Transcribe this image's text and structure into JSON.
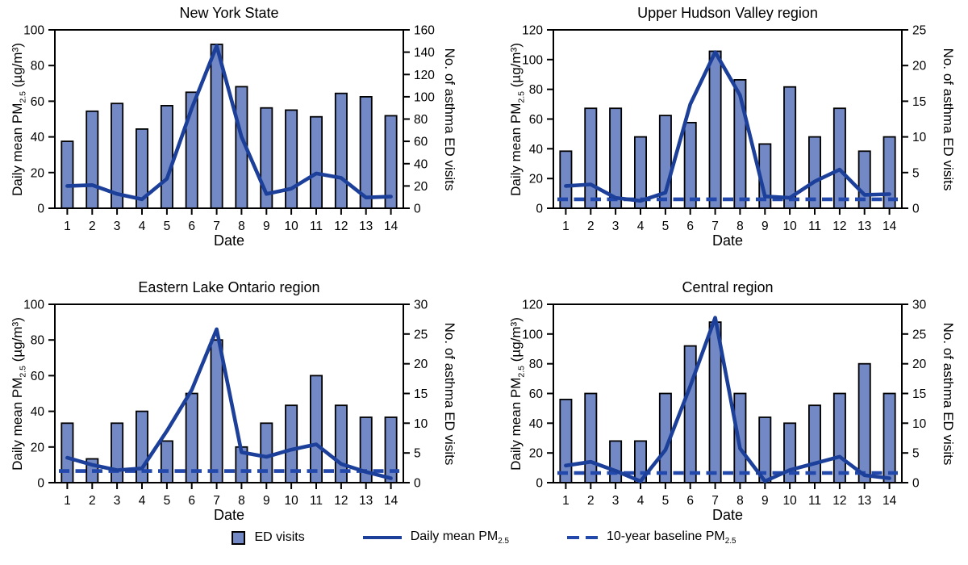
{
  "colors": {
    "bar_fill": "#7289C6",
    "bar_border": "#000000",
    "daily_line": "#1C3F99",
    "baseline_line": "#2348AC",
    "text": "#000000",
    "background": "#FFFFFF"
  },
  "legend": {
    "items": [
      {
        "label": "ED visits",
        "sub": ""
      },
      {
        "label": "Daily mean PM",
        "sub": "2.5"
      },
      {
        "label": "10-year baseline PM",
        "sub": "2.5"
      }
    ]
  },
  "chart_data": [
    {
      "type": "bar",
      "title": "New York State",
      "xlabel": "Date",
      "ylabel_left": {
        "prefix": "Daily mean PM",
        "sub": "2.5",
        "suffix": " (µg/m³)"
      },
      "ylabel_right": "No. of asthma ED visits",
      "categories": [
        1,
        2,
        3,
        4,
        5,
        6,
        7,
        8,
        9,
        10,
        11,
        12,
        13,
        14
      ],
      "left_axis": {
        "range": [
          0,
          100
        ],
        "ticks": [
          0,
          20,
          40,
          60,
          80,
          100
        ]
      },
      "right_axis": {
        "range": [
          0,
          160
        ],
        "ticks": [
          0,
          20,
          40,
          60,
          80,
          100,
          120,
          140,
          160
        ]
      },
      "series": [
        {
          "name": "ED visits",
          "type": "bar",
          "axis": "right",
          "values": [
            60,
            87,
            94,
            71,
            92,
            104,
            147,
            109,
            90,
            88,
            82,
            103,
            100,
            83
          ]
        },
        {
          "name": "Daily mean PM2.5",
          "type": "line",
          "axis": "left",
          "values": [
            12.5,
            13,
            8,
            5,
            16.5,
            56,
            91,
            40,
            8,
            11,
            19.5,
            17,
            6,
            6.5
          ]
        },
        {
          "name": "10-year baseline PM2.5",
          "type": "dashed-line",
          "axis": "left",
          "value": null
        }
      ]
    },
    {
      "type": "bar",
      "title": "Upper Hudson Valley region",
      "xlabel": "Date",
      "ylabel_left": {
        "prefix": "Daily mean PM",
        "sub": "2.5",
        "suffix": " (µg/m³)"
      },
      "ylabel_right": "No. of asthma ED visits",
      "categories": [
        1,
        2,
        3,
        4,
        5,
        6,
        7,
        8,
        9,
        10,
        11,
        12,
        13,
        14
      ],
      "left_axis": {
        "range": [
          0,
          120
        ],
        "ticks": [
          0,
          20,
          40,
          60,
          80,
          100,
          120
        ]
      },
      "right_axis": {
        "range": [
          0,
          25
        ],
        "ticks": [
          0,
          5,
          10,
          15,
          20,
          25
        ]
      },
      "series": [
        {
          "name": "ED visits",
          "type": "bar",
          "axis": "right",
          "values": [
            8,
            14,
            14,
            10,
            13,
            12,
            22,
            18,
            9,
            17,
            10,
            14,
            8,
            10
          ]
        },
        {
          "name": "Daily mean PM2.5",
          "type": "line",
          "axis": "left",
          "values": [
            15,
            16,
            7,
            5,
            10.5,
            70,
            105,
            76,
            8,
            7,
            18,
            26,
            9,
            9.5
          ]
        },
        {
          "name": "10-year baseline PM2.5",
          "type": "dashed-line",
          "axis": "left",
          "value": 6
        }
      ]
    },
    {
      "type": "bar",
      "title": "Eastern Lake Ontario region",
      "xlabel": "Date",
      "ylabel_left": {
        "prefix": "Daily mean PM",
        "sub": "2.5",
        "suffix": " (µg/m³)"
      },
      "ylabel_right": "No. of asthma ED visits",
      "categories": [
        1,
        2,
        3,
        4,
        5,
        6,
        7,
        8,
        9,
        10,
        11,
        12,
        13,
        14
      ],
      "left_axis": {
        "range": [
          0,
          100
        ],
        "ticks": [
          0,
          20,
          40,
          60,
          80,
          100
        ]
      },
      "right_axis": {
        "range": [
          0,
          30
        ],
        "ticks": [
          0,
          5,
          10,
          15,
          20,
          25,
          30
        ]
      },
      "series": [
        {
          "name": "ED visits",
          "type": "bar",
          "axis": "right",
          "values": [
            10,
            4,
            10,
            12,
            7,
            15,
            24,
            6,
            10,
            13,
            18,
            13,
            11,
            11
          ]
        },
        {
          "name": "Daily mean PM2.5",
          "type": "line",
          "axis": "left",
          "values": [
            14,
            10,
            7,
            8,
            29,
            52,
            86,
            17,
            14.5,
            18.5,
            21.5,
            10.5,
            6,
            2.5
          ]
        },
        {
          "name": "10-year baseline PM2.5",
          "type": "dashed-line",
          "axis": "left",
          "value": 6.5
        }
      ]
    },
    {
      "type": "bar",
      "title": "Central region",
      "xlabel": "Date",
      "ylabel_left": {
        "prefix": "Daily mean PM",
        "sub": "2.5",
        "suffix": " (µg/m³)"
      },
      "ylabel_right": "No. of asthma ED visits",
      "categories": [
        1,
        2,
        3,
        4,
        5,
        6,
        7,
        8,
        9,
        10,
        11,
        12,
        13,
        14
      ],
      "left_axis": {
        "range": [
          0,
          120
        ],
        "ticks": [
          0,
          20,
          40,
          60,
          80,
          100,
          120
        ]
      },
      "right_axis": {
        "range": [
          0,
          30
        ],
        "ticks": [
          0,
          5,
          10,
          15,
          20,
          25,
          30
        ]
      },
      "series": [
        {
          "name": "ED visits",
          "type": "bar",
          "axis": "right",
          "values": [
            14,
            15,
            7,
            7,
            15,
            23,
            27,
            15,
            11,
            10,
            13,
            15,
            20,
            15
          ]
        },
        {
          "name": "Daily mean PM2.5",
          "type": "line",
          "axis": "left",
          "values": [
            11.5,
            14,
            8,
            1,
            22,
            65,
            111,
            23,
            1,
            8.5,
            13,
            17.5,
            5,
            3
          ]
        },
        {
          "name": "10-year baseline PM2.5",
          "type": "dashed-line",
          "axis": "left",
          "value": 6.5
        }
      ]
    }
  ]
}
